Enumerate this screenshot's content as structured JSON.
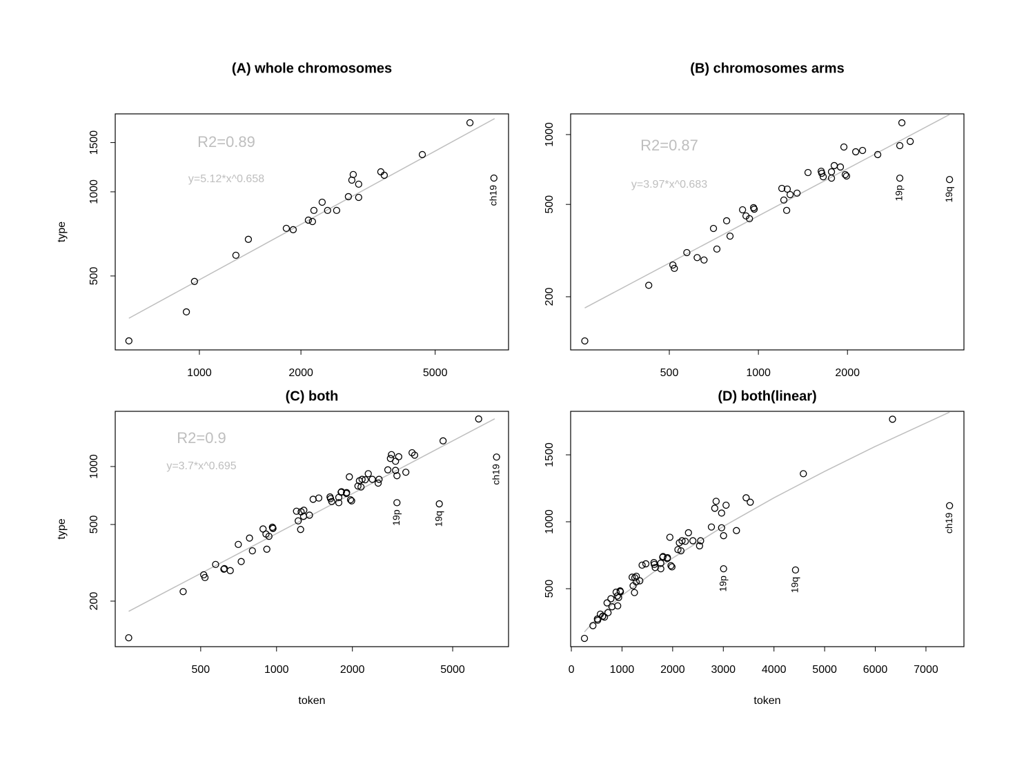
{
  "chart_data": [
    {
      "type": "scatter",
      "title": "(A) whole chromosomes",
      "ylabel": "type",
      "log": true,
      "xlim": [
        563,
        8250
      ],
      "ylim": [
        272,
        1900
      ],
      "xticks": [
        1000,
        2000,
        5000
      ],
      "yticks": [
        500,
        1000,
        1500
      ],
      "annotations": [
        "R2=0.89",
        "y=5.12*x^0.658"
      ],
      "points": {
        "color": "#000000",
        "x": [
          618,
          915,
          967,
          1283,
          1397,
          1810,
          1897,
          2104,
          2164,
          2185,
          2312,
          2399,
          2552,
          2765,
          2831,
          2858,
          2966,
          2966,
          3450,
          3532,
          4580,
          6340,
          7466
        ],
        "y": [
          293,
          372,
          478,
          593,
          676,
          740,
          732,
          792,
          783,
          858,
          918,
          858,
          858,
          961,
          1101,
          1153,
          1065,
          955,
          1179,
          1146,
          1359,
          1766,
          1120
        ],
        "point_labels": [
          null,
          null,
          null,
          null,
          null,
          null,
          null,
          null,
          null,
          null,
          null,
          null,
          null,
          null,
          null,
          null,
          null,
          null,
          null,
          null,
          null,
          null,
          "ch19"
        ]
      },
      "fit": {
        "color": "#bebebe",
        "x": [
          618,
          7500
        ],
        "y": [
          353,
          1827
        ]
      }
    },
    {
      "type": "scatter",
      "title": "(B) chromosomes arms",
      "log": true,
      "xlim": [
        232,
        4950
      ],
      "ylim": [
        118,
        1228
      ],
      "xticks": [
        500,
        1000,
        2000
      ],
      "yticks": [
        200,
        500,
        1000
      ],
      "annotations": [
        "R2=0.87",
        "y=3.97*x^0.683"
      ],
      "points": {
        "color": "#000000",
        "x": [
          259,
          426,
          514,
          520,
          573,
          621,
          655,
          705,
          724,
          781,
          802,
          884,
          908,
          933,
          963,
          968,
          1200,
          1219,
          1246,
          1252,
          1280,
          1351,
          1471,
          1630,
          1638,
          1656,
          1766,
          1766,
          1804,
          1893,
          1945,
          1966,
          1986,
          2132,
          2249,
          2531,
          3005,
          3005,
          3054,
          3259,
          4425
        ],
        "y": [
          129,
          224,
          274,
          265,
          310,
          295,
          288,
          394,
          321,
          425,
          365,
          474,
          446,
          434,
          484,
          477,
          586,
          522,
          471,
          582,
          551,
          559,
          686,
          695,
          681,
          658,
          691,
          649,
          735,
          725,
          884,
          672,
          663,
          843,
          854,
          820,
          896,
          649,
          1124,
          934,
          640
        ],
        "point_labels": [
          null,
          null,
          null,
          null,
          null,
          null,
          null,
          null,
          null,
          null,
          null,
          null,
          null,
          null,
          null,
          null,
          null,
          null,
          null,
          null,
          null,
          null,
          null,
          null,
          null,
          null,
          null,
          null,
          null,
          null,
          null,
          null,
          null,
          null,
          null,
          null,
          null,
          "19p",
          null,
          null,
          "19q"
        ]
      },
      "fit": {
        "color": "#bebebe",
        "x": [
          259,
          4425
        ],
        "y": [
          179,
          1220
        ]
      }
    },
    {
      "type": "scatter",
      "title": "(C) both",
      "xlabel": "token",
      "ylabel": "type",
      "log": true,
      "xlim": [
        229,
        8330
      ],
      "ylim": [
        116,
        1935
      ],
      "xticks": [
        500,
        1000,
        2000,
        5000
      ],
      "yticks": [
        200,
        500,
        1000
      ],
      "annotations": [
        "R2=0.9",
        "y=3.7*x^0.695"
      ],
      "points": {
        "color": "#000000",
        "x": [
          618,
          915,
          967,
          1283,
          1397,
          1810,
          1897,
          2104,
          2164,
          2185,
          2312,
          2399,
          2552,
          2765,
          2831,
          2858,
          2966,
          2966,
          3450,
          3532,
          4580,
          6340,
          7466,
          259,
          426,
          514,
          520,
          573,
          621,
          655,
          705,
          724,
          781,
          802,
          884,
          908,
          933,
          963,
          968,
          1200,
          1219,
          1246,
          1252,
          1280,
          1351,
          1471,
          1630,
          1638,
          1656,
          1766,
          1766,
          1804,
          1893,
          1945,
          1966,
          1986,
          2132,
          2249,
          2531,
          3005,
          3005,
          3054,
          3259,
          4425
        ],
        "y": [
          293,
          372,
          478,
          593,
          676,
          740,
          732,
          792,
          783,
          858,
          918,
          858,
          858,
          961,
          1101,
          1153,
          1065,
          955,
          1179,
          1146,
          1359,
          1766,
          1120,
          129,
          224,
          274,
          265,
          310,
          295,
          288,
          394,
          321,
          425,
          365,
          474,
          446,
          434,
          484,
          477,
          586,
          522,
          471,
          582,
          551,
          559,
          686,
          695,
          681,
          658,
          691,
          649,
          735,
          725,
          884,
          672,
          663,
          843,
          854,
          820,
          896,
          649,
          1124,
          934,
          640
        ],
        "point_labels": [
          null,
          null,
          null,
          null,
          null,
          null,
          null,
          null,
          null,
          null,
          null,
          null,
          null,
          null,
          null,
          null,
          null,
          null,
          null,
          null,
          null,
          null,
          "ch19",
          null,
          null,
          null,
          null,
          null,
          null,
          null,
          null,
          null,
          null,
          null,
          null,
          null,
          null,
          null,
          null,
          null,
          null,
          null,
          null,
          null,
          null,
          null,
          null,
          null,
          null,
          null,
          null,
          null,
          null,
          null,
          null,
          null,
          null,
          null,
          null,
          null,
          "19p",
          null,
          null,
          "19q"
        ]
      },
      "fit": {
        "color": "#bebebe",
        "x": [
          259,
          7340
        ],
        "y": [
          177,
          1770
        ]
      }
    },
    {
      "type": "scatter",
      "title": "(D) both(linear)",
      "xlabel": "token",
      "log": false,
      "xlim": [
        -14,
        7750
      ],
      "ylim": [
        67,
        1825
      ],
      "xticks": [
        0,
        1000,
        2000,
        3000,
        4000,
        5000,
        6000,
        7000
      ],
      "yticks": [
        500,
        1000,
        1500
      ],
      "points": {
        "color": "#000000",
        "x": [
          618,
          915,
          967,
          1283,
          1397,
          1810,
          1897,
          2104,
          2164,
          2185,
          2312,
          2399,
          2552,
          2765,
          2831,
          2858,
          2966,
          2966,
          3450,
          3532,
          4580,
          6340,
          7466,
          259,
          426,
          514,
          520,
          573,
          621,
          655,
          705,
          724,
          781,
          802,
          884,
          908,
          933,
          963,
          968,
          1200,
          1219,
          1246,
          1252,
          1280,
          1351,
          1471,
          1630,
          1638,
          1656,
          1766,
          1766,
          1804,
          1893,
          1945,
          1966,
          1986,
          2132,
          2249,
          2531,
          3005,
          3005,
          3054,
          3259,
          4425
        ],
        "y": [
          293,
          372,
          478,
          593,
          676,
          740,
          732,
          792,
          783,
          858,
          918,
          858,
          858,
          961,
          1101,
          1153,
          1065,
          955,
          1179,
          1146,
          1359,
          1766,
          1120,
          129,
          224,
          274,
          265,
          310,
          295,
          288,
          394,
          321,
          425,
          365,
          474,
          446,
          434,
          484,
          477,
          586,
          522,
          471,
          582,
          551,
          559,
          686,
          695,
          681,
          658,
          691,
          649,
          735,
          725,
          884,
          672,
          663,
          843,
          854,
          820,
          896,
          649,
          1124,
          934,
          640
        ],
        "point_labels": [
          null,
          null,
          null,
          null,
          null,
          null,
          null,
          null,
          null,
          null,
          null,
          null,
          null,
          null,
          null,
          null,
          null,
          null,
          null,
          null,
          null,
          null,
          "ch19",
          null,
          null,
          null,
          null,
          null,
          null,
          null,
          null,
          null,
          null,
          null,
          null,
          null,
          null,
          null,
          null,
          null,
          null,
          null,
          null,
          null,
          null,
          null,
          null,
          null,
          null,
          null,
          null,
          null,
          null,
          null,
          null,
          null,
          null,
          null,
          null,
          null,
          "19p",
          null,
          null,
          "19q"
        ]
      },
      "fit": {
        "color": "#bebebe",
        "x": [
          259,
          500,
          1000,
          2000,
          3000,
          4000,
          5000,
          6000,
          7466
        ],
        "y": [
          177,
          278,
          450,
          729,
          965,
          1179,
          1376,
          1563,
          1819
        ]
      }
    }
  ]
}
